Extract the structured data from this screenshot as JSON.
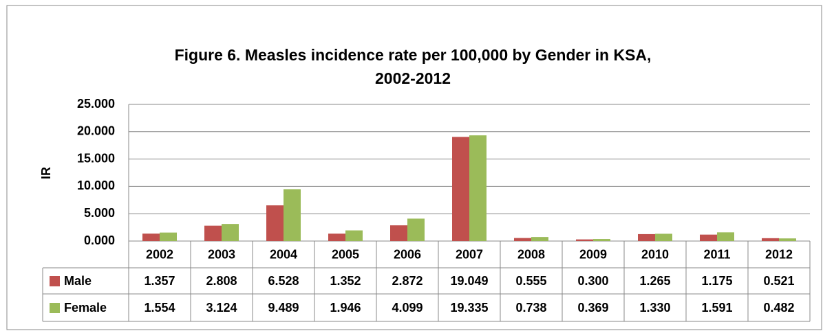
{
  "chart_data": {
    "type": "bar",
    "title": "Figure 6. Measles incidence rate per 100,000 by Gender in KSA,",
    "subtitle": "2002-2012",
    "y_label": "IR",
    "categories": [
      "2002",
      "2003",
      "2004",
      "2005",
      "2006",
      "2007",
      "2008",
      "2009",
      "2010",
      "2011",
      "2012"
    ],
    "series": [
      {
        "name": "Male",
        "color": "#c0504d",
        "values": [
          1.357,
          2.808,
          6.528,
          1.352,
          2.872,
          19.049,
          0.555,
          0.3,
          1.265,
          1.175,
          0.521
        ],
        "value_labels": [
          "1.357",
          "2.808",
          "6.528",
          "1.352",
          "2.872",
          "19.049",
          "0.555",
          "0.300",
          "1.265",
          "1.175",
          "0.521"
        ]
      },
      {
        "name": "Female",
        "color": "#9bbb59",
        "values": [
          1.554,
          3.124,
          9.489,
          1.946,
          4.099,
          19.335,
          0.738,
          0.369,
          1.33,
          1.591,
          0.482
        ],
        "value_labels": [
          "1.554",
          "3.124",
          "9.489",
          "1.946",
          "4.099",
          "19.335",
          "0.738",
          "0.369",
          "1.330",
          "1.591",
          "0.482"
        ]
      }
    ],
    "ylim": [
      0,
      25
    ],
    "yticks": [
      {
        "value": 0,
        "label": "0.000"
      },
      {
        "value": 5,
        "label": "5.000"
      },
      {
        "value": 10,
        "label": "10.000"
      },
      {
        "value": 15,
        "label": "15.000"
      },
      {
        "value": 20,
        "label": "20.000"
      },
      {
        "value": 25,
        "label": "25.000"
      }
    ],
    "grid": true
  }
}
